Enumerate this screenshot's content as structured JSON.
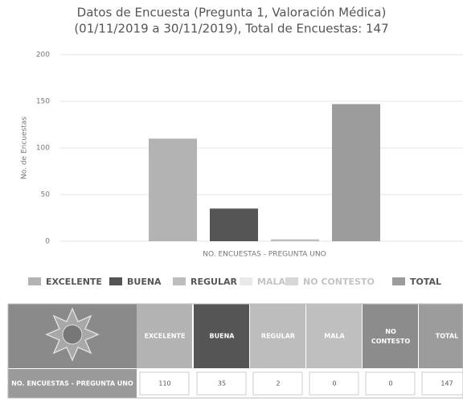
{
  "chart_data": {
    "type": "bar",
    "title": "Datos de Encuesta (Pregunta 1, Valoración Médica)",
    "subtitle": "(01/11/2019 a 30/11/2019), Total de Encuestas: 147",
    "y_label": "No. de Encuestas",
    "categories": [
      "NO. ENCUESTAS - PREGUNTA UNO"
    ],
    "series": [
      {
        "name": "EXCELENTE",
        "color": "#b3b3b3",
        "values": [
          110
        ]
      },
      {
        "name": "BUENA",
        "color": "#555555",
        "values": [
          35
        ]
      },
      {
        "name": "REGULAR",
        "color": "#bdbdbd",
        "values": [
          2
        ]
      },
      {
        "name": "MALA",
        "color": "#bfbfbf",
        "values": [
          0
        ],
        "hidden": true
      },
      {
        "name": "NO CONTESTO",
        "color": "#8c8c8c",
        "values": [
          0
        ],
        "hidden": true
      },
      {
        "name": "TOTAL",
        "color": "#9c9c9c",
        "values": [
          147
        ]
      }
    ],
    "ylim": [
      0,
      200
    ],
    "yticks": [
      0,
      50,
      100,
      150,
      200
    ],
    "grid": true
  }
}
